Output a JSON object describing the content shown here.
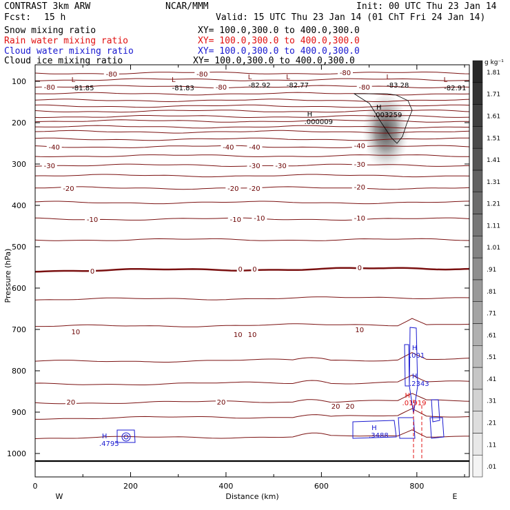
{
  "header": {
    "model": "CONTRAST 3km ARW",
    "center": "NCAR/MMM",
    "init": "Init: 00 UTC Thu 23 Jan 14",
    "fcst_label": "Fcst:",
    "fcst_value": "15 h",
    "valid": "Valid: 15 UTC Thu 23 Jan 14 (01 ChT Fri 24 Jan 14)"
  },
  "fields": [
    {
      "name": "Snow mixing ratio",
      "xy": "XY= 100.0,300.0 to 400.0,300.0",
      "color": "#000000"
    },
    {
      "name": "Rain water mixing ratio",
      "xy": "XY= 100.0,300.0 to 400.0,300.0",
      "color": "#e01010"
    },
    {
      "name": "Cloud water mixing ratio",
      "xy": "XY= 100.0,300.0 to 400.0,300.0",
      "color": "#1818d0"
    },
    {
      "name": "Cloud ice mixing ratio",
      "xy": "XY= 100.0,300.0 to 400.0,300.0",
      "color": "#000000"
    }
  ],
  "chart_data": {
    "type": "cross-section",
    "xlabel": "Distance (km)",
    "ylabel": "Pressure (hPa)",
    "xlim": [
      0,
      910
    ],
    "ylim": [
      1050,
      70
    ],
    "x_ticks": [
      "0",
      "200",
      "400",
      "600",
      "800"
    ],
    "x_tick_values": [
      0,
      200,
      400,
      600,
      800
    ],
    "y_ticks": [
      "100",
      "200",
      "300",
      "400",
      "500",
      "600",
      "700",
      "800",
      "900",
      "1000"
    ],
    "y_tick_values": [
      100,
      200,
      300,
      400,
      500,
      600,
      700,
      800,
      900,
      1000
    ],
    "west_label": "W",
    "east_label": "E",
    "colorbar": {
      "unit": "g kg⁻¹",
      "labels": [
        ".01",
        ".11",
        ".21",
        ".31",
        ".41",
        ".51",
        ".61",
        ".71",
        ".81",
        ".91",
        "1.01",
        "1.11",
        "1.21",
        "1.31",
        "1.41",
        "1.51",
        "1.61",
        "1.71",
        "1.81"
      ]
    },
    "temperature_labels": [
      {
        "text": "-80",
        "x": 160,
        "p": 82
      },
      {
        "text": "-80",
        "x": 350,
        "p": 82
      },
      {
        "text": "-80",
        "x": 650,
        "p": 78
      },
      {
        "text": "-80",
        "x": 30,
        "p": 113
      },
      {
        "text": "-80",
        "x": 390,
        "p": 113
      },
      {
        "text": "-80",
        "x": 690,
        "p": 113
      },
      {
        "text": "-40",
        "x": 40,
        "p": 258
      },
      {
        "text": "-40",
        "x": 405,
        "p": 258
      },
      {
        "text": "-40",
        "x": 460,
        "p": 258
      },
      {
        "text": "-40",
        "x": 680,
        "p": 255
      },
      {
        "text": "-30",
        "x": 30,
        "p": 303
      },
      {
        "text": "-30",
        "x": 460,
        "p": 303
      },
      {
        "text": "-30",
        "x": 515,
        "p": 303
      },
      {
        "text": "-30",
        "x": 680,
        "p": 300
      },
      {
        "text": "-20",
        "x": 70,
        "p": 358
      },
      {
        "text": "-20",
        "x": 415,
        "p": 358
      },
      {
        "text": "-20",
        "x": 460,
        "p": 358
      },
      {
        "text": "-20",
        "x": 680,
        "p": 355
      },
      {
        "text": "-10",
        "x": 120,
        "p": 433
      },
      {
        "text": "-10",
        "x": 420,
        "p": 433
      },
      {
        "text": "-10",
        "x": 470,
        "p": 430
      },
      {
        "text": "-10",
        "x": 680,
        "p": 430
      },
      {
        "text": "0",
        "x": 120,
        "p": 558
      },
      {
        "text": "0",
        "x": 430,
        "p": 553
      },
      {
        "text": "0",
        "x": 460,
        "p": 553
      },
      {
        "text": "0",
        "x": 680,
        "p": 550
      },
      {
        "text": "10",
        "x": 85,
        "p": 705
      },
      {
        "text": "10",
        "x": 425,
        "p": 712
      },
      {
        "text": "10",
        "x": 455,
        "p": 712
      },
      {
        "text": "10",
        "x": 680,
        "p": 700
      },
      {
        "text": "20",
        "x": 75,
        "p": 875
      },
      {
        "text": "20",
        "x": 390,
        "p": 875
      },
      {
        "text": "20",
        "x": 630,
        "p": 885
      },
      {
        "text": "20",
        "x": 660,
        "p": 885
      }
    ],
    "lows": [
      {
        "label": "L",
        "value": "-81.85",
        "x": 80,
        "p": 102
      },
      {
        "label": "L",
        "value": "-81.83",
        "x": 290,
        "p": 102
      },
      {
        "label": "L",
        "value": "-82.92",
        "x": 450,
        "p": 95
      },
      {
        "label": "L",
        "value": "-82.77",
        "x": 530,
        "p": 95
      },
      {
        "label": "L",
        "value": "-83.28",
        "x": 740,
        "p": 95
      },
      {
        "label": "L",
        "value": "-82.91",
        "x": 860,
        "p": 102
      }
    ],
    "highs": [
      {
        "label": "H",
        "value": ".000009",
        "x": 570,
        "p": 185,
        "color": "#000000"
      },
      {
        "label": "H",
        "value": ".003259",
        "x": 715,
        "p": 168,
        "color": "#000000"
      },
      {
        "label": "H",
        "value": ".001",
        "x": 790,
        "p": 750,
        "color": "#1818d0"
      },
      {
        "label": "H",
        "value": ".2343",
        "x": 790,
        "p": 818,
        "color": "#1818d0"
      },
      {
        "label": "H",
        "value": ".01919",
        "x": 775,
        "p": 865,
        "color": "#e01010"
      },
      {
        "label": "H",
        "value": ".3488",
        "x": 705,
        "p": 943,
        "color": "#1818d0"
      },
      {
        "label": "H",
        "value": ".4795",
        "x": 140,
        "p": 963,
        "color": "#1818d0"
      }
    ]
  }
}
